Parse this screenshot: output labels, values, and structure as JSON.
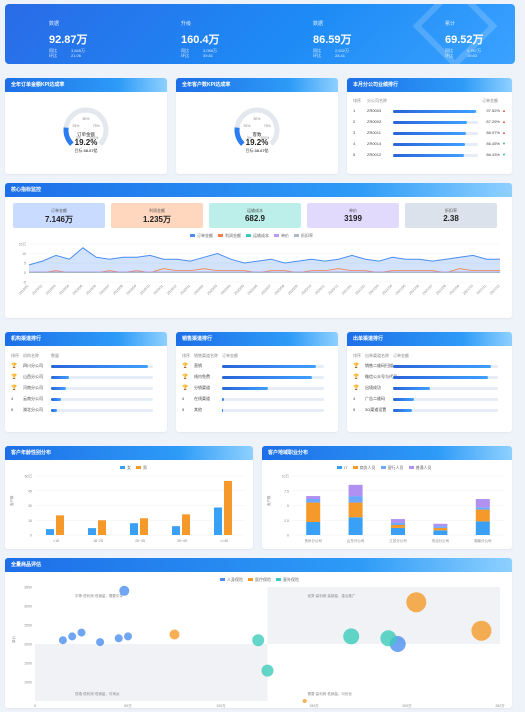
{
  "top_kpis": [
    {
      "label": "数据",
      "value": "92.87万",
      "sub": [
        [
          "同比",
          "3,845万"
        ],
        [
          "环比",
          "21.06"
        ]
      ]
    },
    {
      "label": "升级",
      "value": "160.4万",
      "sub": [
        [
          "同比",
          "3,056万"
        ],
        [
          "环比",
          "39.81"
        ]
      ]
    },
    {
      "label": "数据",
      "value": "86.59万",
      "sub": [
        [
          "同比",
          "2,632万"
        ],
        [
          "环比",
          "28.41"
        ]
      ]
    },
    {
      "label": "累计",
      "value": "69.52万",
      "sub": [
        [
          "同比",
          "4,767万"
        ],
        [
          "环比",
          "19.63"
        ]
      ]
    }
  ],
  "gauge1": {
    "title": "全年订单金额KPI达成率",
    "label": "订单金额",
    "pct": "19.2%",
    "pct_value": 19.2,
    "target_label": "目标:",
    "target": "38.67亿",
    "ticks": [
      "0%",
      "25%",
      "50%",
      "75%",
      "100%"
    ]
  },
  "gauge2": {
    "title": "全年客户数KPI达成率",
    "label": "客数",
    "pct": "19.2%",
    "pct_value": 19.2,
    "target_label": "目标:",
    "target": "38.67亿",
    "ticks": [
      "0%",
      "25%",
      "50%",
      "75%",
      "100%"
    ]
  },
  "ranking": {
    "title": "本月分公司业绩排行",
    "headers": [
      "排序",
      "分公司名称",
      "订单金额"
    ],
    "rows": [
      {
        "n": "1",
        "name": "ZR0003",
        "pct": "97.52%",
        "fill": 0.98,
        "up": true
      },
      {
        "n": "2",
        "name": "ZR0002",
        "pct": "87.29%",
        "fill": 0.87,
        "up": true
      },
      {
        "n": "3",
        "name": "ZR0011",
        "pct": "86.97%",
        "fill": 0.86,
        "up": true
      },
      {
        "n": "4",
        "name": "ZR0014",
        "pct": "86.45%",
        "fill": 0.85,
        "up": false
      },
      {
        "n": "5",
        "name": "ZR0012",
        "pct": "86.43%",
        "fill": 0.84,
        "up": false
      }
    ]
  },
  "monitor": {
    "title": "核心指标监控",
    "tiles": [
      {
        "label": "订单金额",
        "value": "7.146万",
        "color": "#c9dcff"
      },
      {
        "label": "利润金额",
        "value": "1.235万",
        "color": "#ffd7bf"
      },
      {
        "label": "运输成本",
        "value": "682.9",
        "color": "#bdefea"
      },
      {
        "label": "单价",
        "value": "3199",
        "color": "#e1dafc"
      },
      {
        "label": "折扣率",
        "value": "2.38",
        "color": "#dbe2ec"
      }
    ],
    "legend": [
      "订单金额",
      "利润金额",
      "运输成本",
      "单价",
      "折扣率"
    ],
    "legend_colors": [
      "#4b8ef0",
      "#f0804b",
      "#3ccabb",
      "#b89cf0",
      "#b0b8c4"
    ]
  },
  "chart_data": [
    {
      "type": "area",
      "title": "核心指标监控",
      "x": [
        "2019/01",
        "2019/02",
        "2019/03",
        "2019/04",
        "2019/05",
        "2019/06",
        "2019/07",
        "2019/08",
        "2019/09",
        "2019/10",
        "2019/11",
        "2019/12",
        "2020/01",
        "2020/02",
        "2020/03",
        "2020/04",
        "2020/05",
        "2020/06",
        "2020/07",
        "2020/08",
        "2020/09",
        "2020/10",
        "2020/11",
        "2020/12",
        "2021/01",
        "2021/02",
        "2021/03",
        "2021/04",
        "2021/05",
        "2021/06",
        "2021/07",
        "2021/08",
        "2021/09",
        "2021/10",
        "2021/11",
        "2021/12"
      ],
      "ylim": [
        -5,
        15
      ],
      "yticks": [
        "15万",
        "10",
        "5",
        "0",
        "-5"
      ],
      "series": [
        {
          "name": "订单金额",
          "values": [
            4,
            6,
            9,
            7,
            13,
            8,
            7,
            8,
            8,
            9,
            7,
            7,
            6,
            8,
            10,
            7,
            5,
            6,
            7,
            5,
            6,
            7,
            6,
            7,
            9,
            7,
            6,
            8,
            7,
            7,
            6,
            7,
            8,
            9,
            7,
            7
          ]
        },
        {
          "name": "利润金额",
          "values": [
            0,
            0,
            1,
            0,
            0,
            0,
            1,
            0,
            1,
            0,
            2,
            1,
            1,
            2,
            1,
            1,
            1,
            0,
            1,
            1,
            0,
            1,
            1,
            2,
            1,
            1,
            0,
            1,
            1,
            1,
            1,
            0,
            2,
            1,
            1,
            1
          ]
        },
        {
          "name": "运输成本",
          "values": [
            0,
            0,
            0,
            0,
            0,
            0,
            0,
            0,
            0,
            0,
            0,
            0,
            0,
            0,
            0,
            0,
            0,
            0,
            0,
            0,
            0,
            0,
            0,
            0,
            0,
            0,
            0,
            0,
            0,
            0,
            0,
            0,
            0,
            0,
            0,
            0
          ]
        },
        {
          "name": "单价",
          "values": [
            0.3,
            0.3,
            0.3,
            0.3,
            0.3,
            0.3,
            0.3,
            0.3,
            0.3,
            0.3,
            0.3,
            0.3,
            0.3,
            0.3,
            0.3,
            0.3,
            0.3,
            0.3,
            0.3,
            0.3,
            0.3,
            0.3,
            0.3,
            0.3,
            0.3,
            0.3,
            0.3,
            0.3,
            0.3,
            0.3,
            0.3,
            0.3,
            0.3,
            0.3,
            0.3,
            0.3
          ]
        },
        {
          "name": "折扣率",
          "values": [
            0,
            0,
            0,
            0,
            0,
            0,
            0,
            0,
            0,
            0,
            0,
            0,
            0,
            0,
            0,
            0,
            0,
            0,
            0,
            0,
            0,
            0,
            0,
            0,
            0,
            0,
            0,
            0,
            0,
            0,
            0,
            0,
            0,
            0,
            0,
            0
          ]
        }
      ]
    },
    {
      "type": "bar",
      "title": "客户年龄性别分布",
      "categories": [
        "<18",
        "18~25",
        "25~35",
        "35~45",
        ">=45"
      ],
      "ylim": [
        0,
        60
      ],
      "yticks": [
        "60万",
        "45",
        "30",
        "15",
        "0"
      ],
      "series": [
        {
          "name": "女",
          "values": [
            6,
            7,
            12,
            9,
            28
          ]
        },
        {
          "name": "男",
          "values": [
            20,
            15,
            17,
            21,
            55
          ]
        }
      ]
    },
    {
      "type": "bar",
      "title": "客户地域职业分布",
      "categories": [
        "贵州分公司",
        "山东分公司",
        "江苏分公司",
        "河北分公司",
        "湖南分公司"
      ],
      "ylim": [
        0,
        10
      ],
      "yticks": [
        "10万",
        "7.5",
        "5",
        "2.5",
        "0"
      ],
      "series": [
        {
          "name": "IT",
          "values": [
            2.2,
            3,
            1.2,
            0.8,
            2.3
          ]
        },
        {
          "name": "商务人员",
          "values": [
            3.3,
            2.5,
            0.5,
            0.4,
            2.0
          ]
        },
        {
          "name": "银行人员",
          "values": [
            0.6,
            1.1,
            0.4,
            0.3,
            0.4
          ]
        },
        {
          "name": "普通人员",
          "values": [
            0.5,
            1.9,
            0.6,
            0.4,
            1.4
          ]
        }
      ]
    },
    {
      "type": "scatter",
      "title": "全量商品评估",
      "xlim": [
        0,
        250
      ],
      "xticks": [
        "0",
        "50万",
        "100万",
        "150万",
        "200万",
        "250万"
      ],
      "ylim": [
        500,
        3500
      ],
      "yticks": [
        "3500",
        "3000",
        "2500",
        "2000",
        "1500",
        "1000"
      ],
      "series": [
        {
          "name": "人身保险",
          "points": [
            [
              15,
              2100
            ],
            [
              20,
              2200
            ],
            [
              25,
              2300
            ],
            [
              35,
              2050
            ],
            [
              45,
              2150
            ],
            [
              50,
              2200
            ],
            [
              48,
              3400
            ],
            [
              195,
              2000
            ]
          ]
        },
        {
          "name": "医疗保险",
          "points": [
            [
              75,
              2250
            ],
            [
              145,
              500
            ],
            [
              205,
              3100
            ],
            [
              240,
              2350
            ]
          ]
        },
        {
          "name": "意外保险",
          "points": [
            [
              120,
              2100
            ],
            [
              125,
              1300
            ],
            [
              170,
              2200
            ],
            [
              190,
              2150
            ]
          ]
        }
      ]
    }
  ],
  "channels": [
    {
      "title": "机构渠道排行",
      "headers": [
        "排序",
        "机构名称",
        "数量"
      ],
      "rows": [
        {
          "n": "1",
          "name": "四川分公司",
          "fill": 0.95
        },
        {
          "n": "2",
          "name": "山西分公司",
          "fill": 0.18
        },
        {
          "n": "3",
          "name": "河南分公司",
          "fill": 0.15
        },
        {
          "n": "4",
          "name": "云南分公司",
          "fill": 0.1
        },
        {
          "n": "5",
          "name": "湖北分公司",
          "fill": 0.06
        }
      ]
    },
    {
      "title": "销售渠道排行",
      "headers": [
        "排序",
        "销售渠道名称",
        "订单金额"
      ],
      "rows": [
        {
          "n": "1",
          "name": "直销",
          "fill": 0.92
        },
        {
          "n": "2",
          "name": "线内免费",
          "fill": 0.88
        },
        {
          "n": "3",
          "name": "分销渠道",
          "fill": 0.45
        },
        {
          "n": "4",
          "name": "在线渠道",
          "fill": 0.02
        },
        {
          "n": "5",
          "name": "其他",
          "fill": 0.01
        }
      ]
    },
    {
      "title": "出单渠道排行",
      "headers": [
        "排序",
        "出单渠道名称",
        "订单金额"
      ],
      "rows": [
        {
          "n": "1",
          "name": "销售二维码扫描",
          "fill": 0.93
        },
        {
          "n": "2",
          "name": "微信公众号与代买",
          "fill": 0.9
        },
        {
          "n": "3",
          "name": "出境成功",
          "fill": 0.35
        },
        {
          "n": "4",
          "name": "广告二维码",
          "fill": 0.2
        },
        {
          "n": "5",
          "name": "3Ω渠道设置",
          "fill": 0.18
        }
      ]
    }
  ],
  "age_chart": {
    "title": "客户年龄性别分布",
    "legend": [
      "女",
      "男"
    ],
    "colors": [
      "#3aa0f5",
      "#f59a2a"
    ],
    "ylabel": "客户数"
  },
  "region_chart": {
    "title": "客户地域职业分布",
    "legend": [
      "IT",
      "商务人员",
      "银行人员",
      "普通人员"
    ],
    "colors": [
      "#3aa0f5",
      "#f59a2a",
      "#6ea8ff",
      "#b090f0"
    ],
    "ylabel": "客户数"
  },
  "scatter_chart": {
    "title": "全量商品评估",
    "legend": [
      "人身保险",
      "医疗保险",
      "意外保险"
    ],
    "colors": [
      "#4b8ef0",
      "#f59a2a",
      "#3ccabb"
    ],
    "ylabel": "单价",
    "notes": [
      "中等·低利润·低销量，需要引导",
      "优秀·高利润·高销量，重点推广",
      "低端·低利润·低销量，可淘汰",
      "需要·高利润·低销量，可优化"
    ]
  }
}
